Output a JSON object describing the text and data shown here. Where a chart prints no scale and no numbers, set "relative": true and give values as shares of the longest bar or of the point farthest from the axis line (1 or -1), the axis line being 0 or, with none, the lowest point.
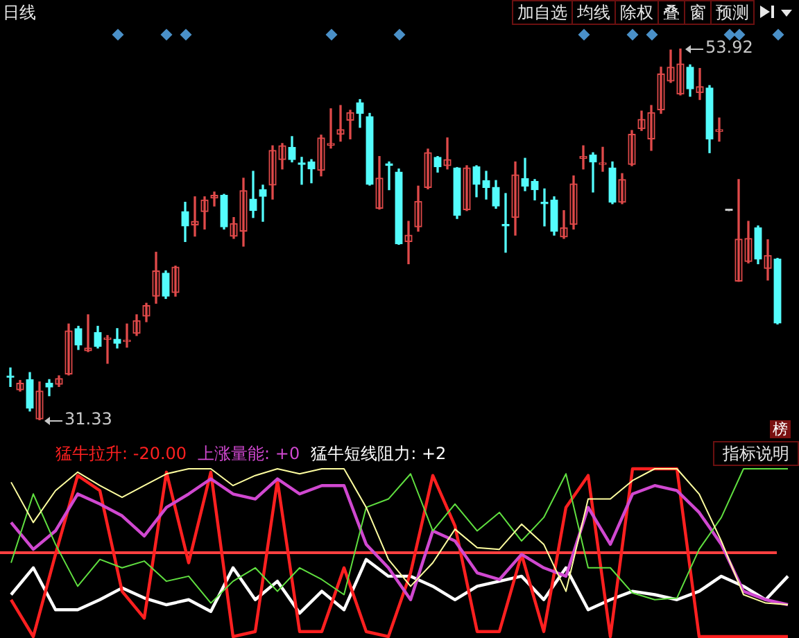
{
  "chart_data": [
    {
      "type": "candlestick",
      "categories": [
        null,
        null,
        null,
        null,
        null,
        null,
        null,
        null,
        null,
        null,
        null,
        null,
        null,
        null,
        null,
        null,
        null,
        null,
        null,
        null,
        null,
        null,
        null,
        null,
        null,
        null,
        null,
        null,
        null,
        null,
        null,
        null,
        null,
        null,
        null,
        null,
        null,
        null,
        null,
        null,
        null,
        null,
        null,
        null,
        null,
        null,
        null,
        null,
        null,
        null,
        null,
        null,
        null,
        null,
        null,
        null,
        null,
        null,
        null,
        null,
        null,
        null,
        null,
        null,
        null,
        null,
        null,
        null,
        null,
        null,
        null,
        null,
        null,
        null,
        null,
        null,
        null,
        null,
        null,
        null
      ],
      "ohlc": [
        [
          33.94,
          34.51,
          33.38,
          33.94
        ],
        [
          33.18,
          33.75,
          33.1,
          33.58
        ],
        [
          33.8,
          34.23,
          31.89,
          32.06
        ],
        [
          31.41,
          33.66,
          31.33,
          33.1
        ],
        [
          33.58,
          33.8,
          32.82,
          33.35
        ],
        [
          33.52,
          34.03,
          33.38,
          33.86
        ],
        [
          34.14,
          37.18,
          34.08,
          36.76
        ],
        [
          36.9,
          37.04,
          35.63,
          35.91
        ],
        [
          35.55,
          37.74,
          35.5,
          35.72
        ],
        [
          36.67,
          37.04,
          35.72,
          35.83
        ],
        [
          36.25,
          36.48,
          34.79,
          36.34
        ],
        [
          36.25,
          36.9,
          35.72,
          36.0
        ],
        [
          36.11,
          37.18,
          35.77,
          36.2
        ],
        [
          36.62,
          37.74,
          36.48,
          37.38
        ],
        [
          37.66,
          38.44,
          37.32,
          38.3
        ],
        [
          38.87,
          41.54,
          38.44,
          40.41
        ],
        [
          40.27,
          40.41,
          38.73,
          38.87
        ],
        [
          39.09,
          40.7,
          38.87,
          40.64
        ],
        [
          44.01,
          44.58,
          42.19,
          43.14
        ],
        [
          43.2,
          44.91,
          42.52,
          43.42
        ],
        [
          44.01,
          44.91,
          42.95,
          44.72
        ],
        [
          44.83,
          45.2,
          44.35,
          45.0
        ],
        [
          45.0,
          45.06,
          42.95,
          43.09
        ],
        [
          42.52,
          43.65,
          42.38,
          43.28
        ],
        [
          42.82,
          46.04,
          41.91,
          45.28
        ],
        [
          44.77,
          46.46,
          43.65,
          44.07
        ],
        [
          45.34,
          45.62,
          43.42,
          44.94
        ],
        [
          45.62,
          48.01,
          44.77,
          47.73
        ],
        [
          47.17,
          48.15,
          46.6,
          48.01
        ],
        [
          47.92,
          48.57,
          47.03,
          47.17
        ],
        [
          46.97,
          47.31,
          45.67,
          46.88
        ],
        [
          47.03,
          47.17,
          45.76,
          46.6
        ],
        [
          46.52,
          48.66,
          46.18,
          48.49
        ],
        [
          48.04,
          50.26,
          47.87,
          48.15
        ],
        [
          48.71,
          50.46,
          48.29,
          48.99
        ],
        [
          49.56,
          50.17,
          48.43,
          50.03
        ],
        [
          50.63,
          50.82,
          49.13,
          49.98
        ],
        [
          49.78,
          49.98,
          45.62,
          45.67
        ],
        [
          44.21,
          47.36,
          44.16,
          46.04
        ],
        [
          46.88,
          47.03,
          45.34,
          46.83
        ],
        [
          46.41,
          46.6,
          42.02,
          42.05
        ],
        [
          42.19,
          43.42,
          40.84,
          42.58
        ],
        [
          43.09,
          45.56,
          42.82,
          44.63
        ],
        [
          45.48,
          47.81,
          45.39,
          47.59
        ],
        [
          47.31,
          47.36,
          46.41,
          46.74
        ],
        [
          46.8,
          48.49,
          46.6,
          47.17
        ],
        [
          46.66,
          46.69,
          43.59,
          43.79
        ],
        [
          44.13,
          46.8,
          44.07,
          46.66
        ],
        [
          46.74,
          46.8,
          44.91,
          45.67
        ],
        [
          45.9,
          46.46,
          44.77,
          45.48
        ],
        [
          45.48,
          45.9,
          44.21,
          44.35
        ],
        [
          43.2,
          45.11,
          41.54,
          43.14
        ],
        [
          43.65,
          47.03,
          42.58,
          46.24
        ],
        [
          46.01,
          47.25,
          45.28,
          45.56
        ],
        [
          45.84,
          45.96,
          44.72,
          45.34
        ],
        [
          44.49,
          45.39,
          43.14,
          44.49
        ],
        [
          44.72,
          44.91,
          42.58,
          42.82
        ],
        [
          42.47,
          44.07,
          42.38,
          43.03
        ],
        [
          43.23,
          46.18,
          42.95,
          45.7
        ],
        [
          47.25,
          48.01,
          46.6,
          47.36
        ],
        [
          47.45,
          47.59,
          45.2,
          47.03
        ],
        [
          46.88,
          47.92,
          46.46,
          46.97
        ],
        [
          46.66,
          47.03,
          44.49,
          44.58
        ],
        [
          44.58,
          46.32,
          44.49,
          45.96
        ],
        [
          46.88,
          48.94,
          46.8,
          48.71
        ],
        [
          49.05,
          50.12,
          48.94,
          49.61
        ],
        [
          48.43,
          50.46,
          47.73,
          50.03
        ],
        [
          50.2,
          52.79,
          49.98,
          52.37
        ],
        [
          51.95,
          53.83,
          51.86,
          52.79
        ],
        [
          51.16,
          53.92,
          51.1,
          52.99
        ],
        [
          52.79,
          52.93,
          51.02,
          51.47
        ],
        [
          51.24,
          52.71,
          50.82,
          51.61
        ],
        [
          51.52,
          51.67,
          47.59,
          48.43
        ],
        [
          48.88,
          49.7,
          48.29,
          48.99
        ],
        [
          44.07,
          44.07,
          44.07,
          44.07
        ],
        [
          39.79,
          45.96,
          39.77,
          42.33
        ],
        [
          40.98,
          43.42,
          40.89,
          42.38
        ],
        [
          43.03,
          43.14,
          40.84,
          41.12
        ],
        [
          40.56,
          42.3,
          39.85,
          41.34
        ],
        [
          41.12,
          41.17,
          37.18,
          37.24
        ]
      ],
      "colors": [
        "#54fcfc",
        "#e04a4a",
        "#54fcfc",
        "#e04a4a",
        "#54fcfc",
        "#e04a4a",
        "#e04a4a",
        "#54fcfc",
        "#e04a4a",
        "#54fcfc",
        "#e04a4a",
        "#54fcfc",
        "#e04a4a",
        "#e04a4a",
        "#e04a4a",
        "#e04a4a",
        "#54fcfc",
        "#e04a4a",
        "#54fcfc",
        "#e04a4a",
        "#e04a4a",
        "#e04a4a",
        "#54fcfc",
        "#e04a4a",
        "#e04a4a",
        "#54fcfc",
        "#54fcfc",
        "#e04a4a",
        "#e04a4a",
        "#54fcfc",
        "#54fcfc",
        "#54fcfc",
        "#e04a4a",
        "#e04a4a",
        "#e04a4a",
        "#e04a4a",
        "#54fcfc",
        "#54fcfc",
        "#e04a4a",
        "#54fcfc",
        "#54fcfc",
        "#e04a4a",
        "#e04a4a",
        "#e04a4a",
        "#54fcfc",
        "#e04a4a",
        "#54fcfc",
        "#e04a4a",
        "#54fcfc",
        "#54fcfc",
        "#54fcfc",
        "#54fcfc",
        "#e04a4a",
        "#54fcfc",
        "#54fcfc",
        "#54fcfc",
        "#54fcfc",
        "#e04a4a",
        "#e04a4a",
        "#e04a4a",
        "#54fcfc",
        "#e04a4a",
        "#54fcfc",
        "#e04a4a",
        "#e04a4a",
        "#e04a4a",
        "#e04a4a",
        "#e04a4a",
        "#e04a4a",
        "#e04a4a",
        "#54fcfc",
        "#e04a4a",
        "#54fcfc",
        "#e04a4a",
        "#c8c8c8",
        "#e04a4a",
        "#e04a4a",
        "#54fcfc",
        "#e04a4a",
        "#54fcfc"
      ],
      "annotations": [
        "日线",
        "加自选",
        "均线",
        "除权",
        "叠",
        "窗",
        "预测",
        "53.92",
        "31.33"
      ]
    },
    {
      "type": "line",
      "relative": true,
      "legend": "top left",
      "categories": [
        null,
        null,
        null,
        null,
        null,
        null,
        null,
        null,
        null,
        null,
        null,
        null,
        null,
        null,
        null,
        null,
        null,
        null,
        null,
        null,
        null,
        null,
        null,
        null,
        null,
        null,
        null,
        null,
        null,
        null,
        null,
        null,
        null,
        null,
        null,
        null
      ],
      "series": [
        {
          "color": "#ffffa0",
          "values": [
            0.92,
            0.68,
            0.87,
            0.98,
            0.9,
            0.83,
            0.9,
            0.97,
            1,
            1,
            0.9,
            0.96,
            1,
            0.97,
            1,
            1,
            0.77,
            0.46,
            0.3,
            0.44,
            0.64,
            0.53,
            0.52,
            0.67,
            0.55,
            0.27,
            0.82,
            0.82,
            0.93,
            1,
            1,
            0.85,
            0.57,
            0.25,
            0.2,
            0.19
          ]
        },
        {
          "color": "#60e040",
          "values": [
            0.44,
            0.85,
            0.55,
            0.3,
            0.46,
            0.41,
            0.45,
            0.33,
            0.36,
            0.2,
            0.33,
            0.41,
            0.27,
            0.41,
            0.34,
            0.25,
            0.77,
            0.82,
            0.97,
            0.63,
            0.79,
            0.63,
            0.74,
            0.57,
            0.71,
            0.97,
            0.41,
            0.41,
            0.26,
            0.22,
            0.23,
            0.52,
            0.71,
            1,
            1,
            1
          ]
        },
        {
          "name": "上涨量能: +0",
          "color": "#d048d0",
          "values": [
            0.68,
            0.52,
            0.63,
            0.85,
            0.79,
            0.72,
            0.6,
            0.77,
            0.85,
            0.94,
            0.85,
            0.82,
            0.94,
            0.85,
            0.9,
            0.9,
            0.55,
            0.41,
            0.22,
            0.63,
            0.57,
            0.38,
            0.34,
            0.49,
            0.41,
            0.36,
            0.77,
            0.55,
            0.85,
            0.9,
            0.87,
            0.74,
            0.55,
            0.27,
            0.22,
            0.19
          ]
        },
        {
          "name": "猛牛拉升: -20.00",
          "color": "#ff2020",
          "values": [
            0.22,
            0,
            0.49,
            0.96,
            0.87,
            0.27,
            0.11,
            0.98,
            0.44,
            0.98,
            0,
            0.03,
            0.93,
            0.03,
            0.03,
            0.41,
            0.03,
            0,
            0.38,
            0.96,
            0.66,
            0.03,
            0.03,
            0.49,
            0.03,
            0.77,
            0.96,
            0,
            1,
            1,
            1,
            0,
            0,
            0,
            0,
            0
          ]
        },
        {
          "name": "猛牛短线阻力: +2",
          "color": "#ffffff",
          "values": [
            0.25,
            0.41,
            0.16,
            0.16,
            0.22,
            0.29,
            0.23,
            0.19,
            0.22,
            0.15,
            0.41,
            0.22,
            0.33,
            0.14,
            0.27,
            0.16,
            0.46,
            0.36,
            0.36,
            0.3,
            0.22,
            0.3,
            0.33,
            0.36,
            0.22,
            0.41,
            0.16,
            0.22,
            0.27,
            0.25,
            0.22,
            0.27,
            0.36,
            0.3,
            0.22,
            0.36
          ]
        }
      ],
      "ref_lines": [
        {
          "axis": "y",
          "value": 0.5,
          "color": "#ff4040"
        }
      ],
      "annotations": [
        "榜",
        "指标说明"
      ]
    }
  ]
}
